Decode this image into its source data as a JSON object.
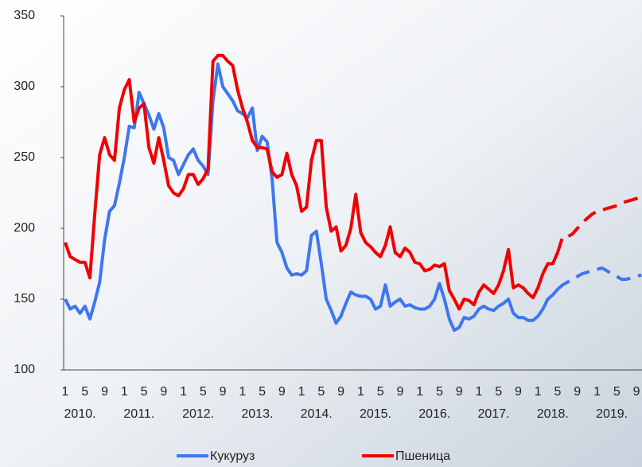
{
  "chart_data": {
    "type": "line",
    "categories": [
      "1",
      null,
      null,
      null,
      "5",
      null,
      null,
      null,
      "9",
      null,
      null,
      null,
      "1",
      null,
      null,
      null,
      "5",
      null,
      null,
      null,
      "9",
      null,
      null,
      null,
      "1",
      null,
      null,
      null,
      "5",
      null,
      null,
      null,
      "9",
      null,
      null,
      null,
      "1",
      null,
      null,
      null,
      "5",
      null,
      null,
      null,
      "9",
      null,
      null,
      null,
      "1",
      null,
      null,
      null,
      "5",
      null,
      null,
      null,
      "9",
      null,
      null,
      null,
      "1",
      null,
      null,
      null,
      "5",
      null,
      null,
      null,
      "9",
      null,
      null,
      null,
      "1",
      null,
      null,
      null,
      "5",
      null,
      null,
      null,
      "9",
      null,
      null,
      null,
      "1",
      null,
      null,
      null,
      "5",
      null,
      null,
      null,
      "9",
      null,
      null,
      null,
      "1",
      null,
      null,
      null,
      "5",
      null,
      null,
      null,
      "9",
      null,
      null,
      null,
      "1",
      null,
      null,
      null,
      "5",
      null,
      null,
      null,
      "9",
      null
    ],
    "year_labels": [
      "2010.",
      "2011.",
      "2012.",
      "2013.",
      "2014.",
      "2015.",
      "2016.",
      "2017.",
      "2018.",
      "2019."
    ],
    "ylim": [
      100,
      350
    ],
    "yticks": [
      100,
      150,
      200,
      250,
      300,
      350
    ],
    "series": [
      {
        "name": "Кукуруз",
        "color": "#3e76f0",
        "values": [
          150,
          143,
          145,
          140,
          145,
          136,
          148,
          162,
          192,
          212,
          216,
          232,
          250,
          272,
          271,
          296,
          288,
          280,
          270,
          281,
          271,
          250,
          248,
          238,
          245,
          252,
          256,
          248,
          244,
          238,
          290,
          316,
          300,
          295,
          290,
          283,
          281,
          278,
          285,
          255,
          265,
          261,
          235,
          190,
          183,
          172,
          167,
          168,
          167,
          170,
          195,
          198,
          175,
          150,
          142,
          133,
          138,
          147,
          155,
          153,
          152,
          152,
          150,
          143,
          145,
          160,
          145,
          148,
          150,
          145,
          146,
          144,
          143,
          143,
          145,
          150,
          161,
          150,
          136,
          128,
          130,
          137,
          136,
          138,
          143,
          145,
          143,
          142,
          145,
          147,
          150,
          140,
          137,
          137,
          135,
          135,
          138,
          143,
          150,
          153,
          157,
          null,
          null,
          null,
          null,
          null,
          null,
          null,
          null,
          null,
          null,
          null,
          null,
          null,
          null,
          null,
          null,
          null
        ],
        "forecast_values": [
          null,
          null,
          null,
          null,
          null,
          null,
          null,
          null,
          null,
          null,
          null,
          null,
          null,
          null,
          null,
          null,
          null,
          null,
          null,
          null,
          null,
          null,
          null,
          null,
          null,
          null,
          null,
          null,
          null,
          null,
          null,
          null,
          null,
          null,
          null,
          null,
          null,
          null,
          null,
          null,
          null,
          null,
          null,
          null,
          null,
          null,
          null,
          null,
          null,
          null,
          null,
          null,
          null,
          null,
          null,
          null,
          null,
          null,
          null,
          null,
          null,
          null,
          null,
          null,
          null,
          null,
          null,
          null,
          null,
          null,
          null,
          null,
          null,
          null,
          null,
          null,
          null,
          null,
          null,
          null,
          null,
          null,
          null,
          null,
          null,
          null,
          null,
          null,
          null,
          null,
          null,
          null,
          null,
          null,
          null,
          null,
          null,
          null,
          null,
          null,
          157,
          160,
          162,
          164,
          166,
          168,
          169,
          170,
          171,
          172,
          170,
          168,
          166,
          164,
          164,
          165,
          166,
          167
        ]
      },
      {
        "name": "Пшеница",
        "color": "#f00000",
        "values": [
          190,
          180,
          178,
          176,
          176,
          165,
          210,
          252,
          264,
          252,
          248,
          285,
          298,
          305,
          275,
          285,
          288,
          257,
          246,
          264,
          248,
          230,
          225,
          223,
          228,
          238,
          238,
          231,
          235,
          242,
          318,
          322,
          322,
          318,
          315,
          298,
          285,
          275,
          262,
          257,
          257,
          256,
          240,
          236,
          238,
          253,
          238,
          230,
          212,
          215,
          248,
          262,
          262,
          215,
          198,
          201,
          184,
          188,
          200,
          224,
          197,
          190,
          187,
          183,
          180,
          188,
          201,
          183,
          180,
          186,
          183,
          176,
          175,
          170,
          171,
          174,
          173,
          175,
          156,
          150,
          143,
          150,
          149,
          146,
          155,
          160,
          157,
          154,
          160,
          170,
          185,
          158,
          160,
          158,
          154,
          151,
          158,
          168,
          175,
          175,
          183,
          null,
          null,
          null,
          null,
          null,
          null,
          null,
          null,
          null,
          null,
          null,
          null,
          null,
          null,
          null,
          null,
          null
        ],
        "forecast_values": [
          null,
          null,
          null,
          null,
          null,
          null,
          null,
          null,
          null,
          null,
          null,
          null,
          null,
          null,
          null,
          null,
          null,
          null,
          null,
          null,
          null,
          null,
          null,
          null,
          null,
          null,
          null,
          null,
          null,
          null,
          null,
          null,
          null,
          null,
          null,
          null,
          null,
          null,
          null,
          null,
          null,
          null,
          null,
          null,
          null,
          null,
          null,
          null,
          null,
          null,
          null,
          null,
          null,
          null,
          null,
          null,
          null,
          null,
          null,
          null,
          null,
          null,
          null,
          null,
          null,
          null,
          null,
          null,
          null,
          null,
          null,
          null,
          null,
          null,
          null,
          null,
          null,
          null,
          null,
          null,
          null,
          null,
          null,
          null,
          null,
          null,
          null,
          null,
          null,
          null,
          null,
          null,
          null,
          null,
          null,
          null,
          null,
          null,
          null,
          null,
          183,
          194,
          194,
          196,
          200,
          204,
          207,
          210,
          212,
          213,
          214,
          215,
          216,
          218,
          219,
          220,
          221,
          222
        ]
      }
    ]
  }
}
